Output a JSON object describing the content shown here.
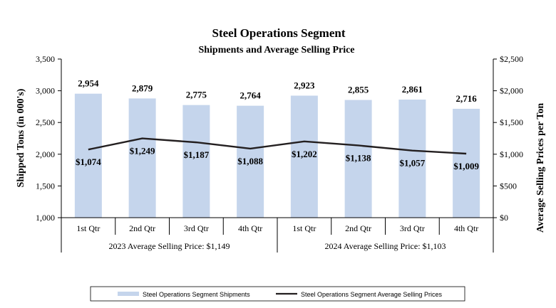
{
  "chart_data": {
    "type": "bar",
    "title": "Steel Operations Segment",
    "subtitle": "Shipments and Average Selling Price",
    "categories": [
      "1st Qtr",
      "2nd Qtr",
      "3rd Qtr",
      "4th Qtr",
      "1st Qtr",
      "2nd Qtr",
      "3rd Qtr",
      "4th Qtr"
    ],
    "groups": [
      {
        "label": "2023 Average Selling Price: $1,149"
      },
      {
        "label": "2024 Average Selling Price: $1,103"
      }
    ],
    "series": [
      {
        "name": "Steel Operations Segment Shipments",
        "type": "bar",
        "axis": "left",
        "values": [
          2954,
          2879,
          2775,
          2764,
          2923,
          2855,
          2861,
          2716
        ],
        "labels": [
          "2,954",
          "2,879",
          "2,775",
          "2,764",
          "2,923",
          "2,855",
          "2,861",
          "2,716"
        ],
        "color": "#c5d5ec"
      },
      {
        "name": "Steel Operations Segment Average Selling Prices",
        "type": "line",
        "axis": "right",
        "values": [
          1074,
          1249,
          1187,
          1088,
          1202,
          1138,
          1057,
          1009
        ],
        "labels": [
          "$1,074",
          "$1,249",
          "$1,187",
          "$1,088",
          "$1,202",
          "$1,138",
          "$1,057",
          "$1,009"
        ],
        "color": "#231f20"
      }
    ],
    "ylabel": "Shipped Tons (in 000's)",
    "ylim": [
      1000,
      3500
    ],
    "yticks": [
      "1,000",
      "1,500",
      "2,000",
      "2,500",
      "3,000",
      "3,500"
    ],
    "y2label": "Average Selling Prices per Ton",
    "y2lim": [
      0,
      2500
    ],
    "y2ticks": [
      "$0",
      "$500",
      "$1,000",
      "$1,500",
      "$2,000",
      "$2,500"
    ],
    "grid": false,
    "legend_position": "bottom"
  }
}
